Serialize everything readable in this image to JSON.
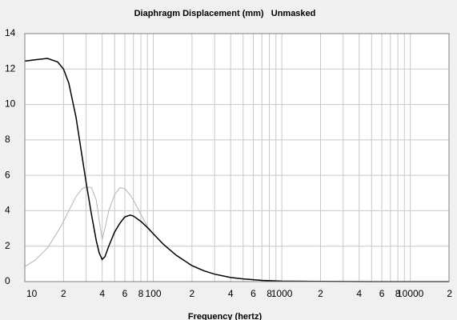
{
  "chart_data": {
    "type": "line",
    "title": "Diaphragm Displacement (mm)   Unmasked",
    "xlabel": "Frequency (hertz)",
    "xscale": "log",
    "grid": true,
    "x": [
      10,
      12,
      15,
      18,
      20,
      22,
      25,
      28,
      30,
      33,
      36,
      38,
      40,
      42,
      45,
      50,
      55,
      60,
      66,
      70,
      80,
      90,
      100,
      120,
      150,
      200,
      250,
      300,
      400,
      500,
      700,
      1000,
      2000,
      5000,
      10000,
      20000
    ],
    "series": [
      {
        "name": "Unmasked",
        "color": "#000000",
        "values": [
          12.45,
          12.52,
          12.6,
          12.4,
          12.0,
          11.2,
          9.3,
          7.0,
          5.6,
          3.8,
          2.3,
          1.6,
          1.25,
          1.4,
          2.0,
          2.8,
          3.3,
          3.65,
          3.75,
          3.7,
          3.4,
          3.05,
          2.7,
          2.1,
          1.5,
          0.9,
          0.6,
          0.42,
          0.23,
          0.15,
          0.07,
          0.03,
          0.01,
          0,
          0,
          0
        ]
      },
      {
        "color": "#b4b4b4",
        "values": [
          0.85,
          1.2,
          1.9,
          2.8,
          3.4,
          4.0,
          4.8,
          5.25,
          5.35,
          5.3,
          4.6,
          3.4,
          2.4,
          3.0,
          4.0,
          4.9,
          5.3,
          5.25,
          4.9,
          4.6,
          3.8,
          3.1,
          2.7,
          2.1,
          1.5,
          0.9,
          0.6,
          0.42,
          0.23,
          0.15,
          0.07,
          0.03,
          0.01,
          0,
          0,
          0
        ]
      }
    ],
    "xlim": [
      10,
      20000
    ],
    "xticks": [
      10,
      {
        "value": 20,
        "label": "2"
      },
      {
        "value": 40,
        "label": "4"
      },
      {
        "value": 60,
        "label": "6"
      },
      {
        "value": 80,
        "label": "8"
      },
      100,
      {
        "value": 200,
        "label": "2"
      },
      {
        "value": 400,
        "label": "4"
      },
      {
        "value": 600,
        "label": "6"
      },
      {
        "value": 800,
        "label": "8"
      },
      1000,
      {
        "value": 2000,
        "label": "2"
      },
      {
        "value": 4000,
        "label": "4"
      },
      {
        "value": 6000,
        "label": "6"
      },
      {
        "value": 8000,
        "label": "8"
      },
      10000,
      {
        "value": 20000,
        "label": "2"
      }
    ],
    "xminor_ticks": [
      30,
      50,
      70,
      90,
      300,
      500,
      700,
      900,
      3000,
      5000,
      7000,
      9000
    ],
    "ylim": [
      0,
      14
    ],
    "yticks": [
      0,
      2,
      4,
      6,
      8,
      10,
      12,
      14
    ]
  }
}
